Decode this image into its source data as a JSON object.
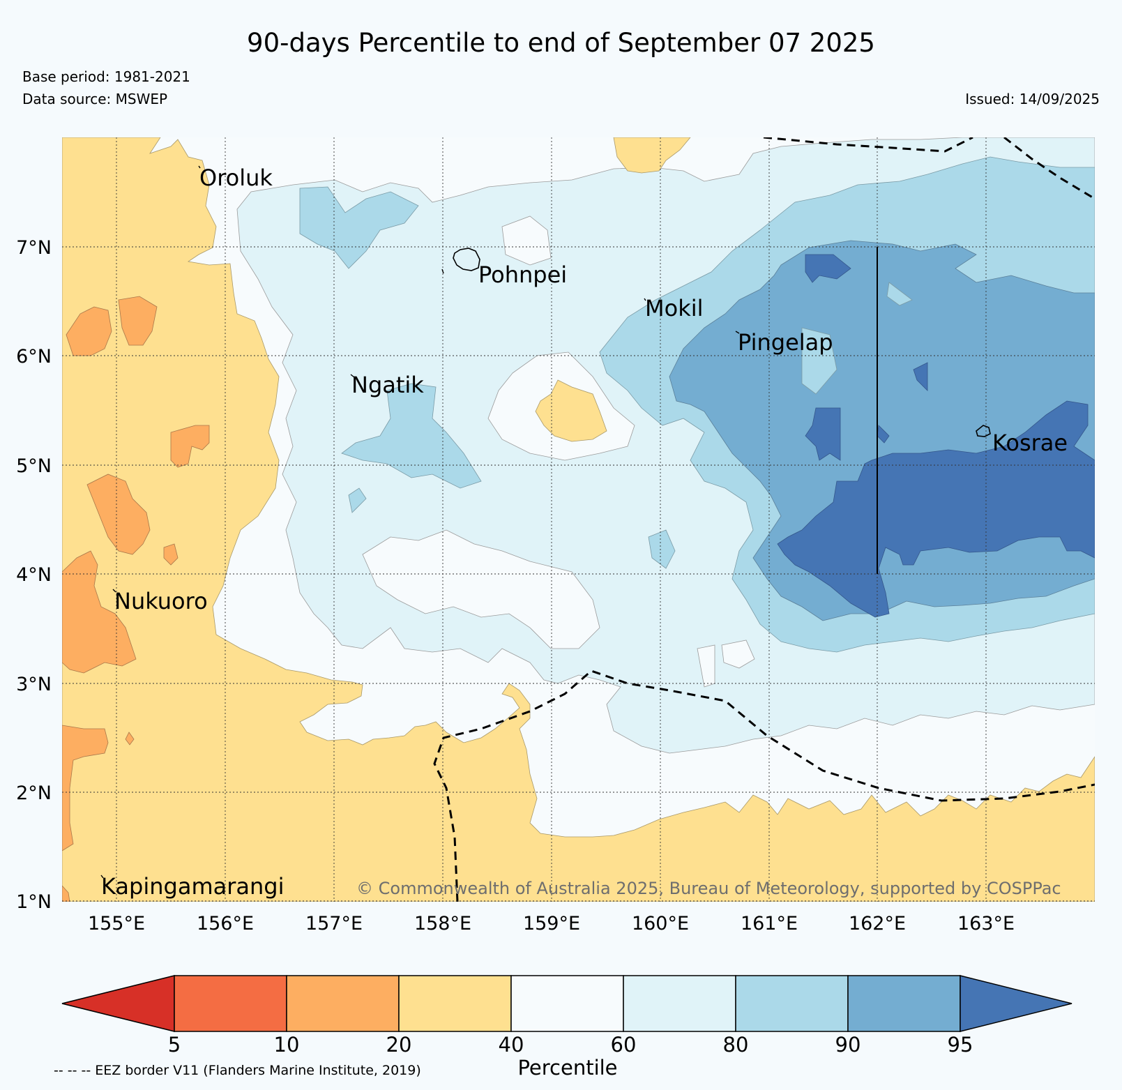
{
  "header": {
    "title": "90-days Percentile to end of September 07 2025",
    "base_period": "Base period: 1981-2021",
    "data_source": "Data source: MSWEP",
    "issued": "Issued: 14/09/2025"
  },
  "map": {
    "lat_labels": [
      "7°N",
      "6°N",
      "5°N",
      "4°N",
      "3°N",
      "2°N",
      "1°N"
    ],
    "lon_labels": [
      "155°E",
      "156°E",
      "157°E",
      "158°E",
      "159°E",
      "160°E",
      "161°E",
      "162°E",
      "163°E"
    ],
    "islands": [
      {
        "name": "Oroluk"
      },
      {
        "name": "Pohnpei"
      },
      {
        "name": "Mokil"
      },
      {
        "name": "Pingelap"
      },
      {
        "name": "Ngatik"
      },
      {
        "name": "Kosrae"
      },
      {
        "name": "Nukuoro"
      },
      {
        "name": "Kapingamarangi"
      }
    ],
    "copyright": "© Commonwealth of Australia 2025, Bureau of Meteorology, supported by COSPPac",
    "colors": {
      "p0_5": "#d73027",
      "p5_10": "#f46d43",
      "p10_20": "#fdae61",
      "p20_40": "#fee090",
      "p40_60": "#f7fbfd",
      "p60_80": "#e0f3f8",
      "p80_90": "#abd9e9",
      "p90_95": "#74add1",
      "p95_100": "#4575b4"
    }
  },
  "colorbar": {
    "ticks": [
      "5",
      "10",
      "20",
      "40",
      "60",
      "80",
      "90",
      "95"
    ],
    "title": "Percentile",
    "colors": [
      "#d73027",
      "#f46d43",
      "#fdae61",
      "#fee090",
      "#f7fbfd",
      "#e0f3f8",
      "#abd9e9",
      "#74add1",
      "#4575b4"
    ]
  },
  "footer": {
    "eez_note": "-- -- -- EEZ border V11 (Flanders Marine Institute, 2019)"
  }
}
